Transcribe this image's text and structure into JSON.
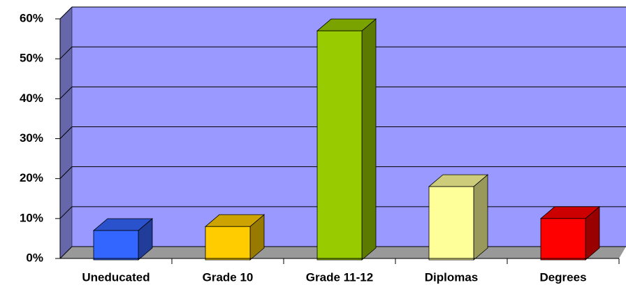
{
  "chart_data": {
    "type": "bar3d",
    "categories": [
      "Uneducated",
      "Grade 10",
      "Grade 11-12",
      "Diplomas",
      "Degrees"
    ],
    "values": [
      7,
      8,
      57,
      18,
      10
    ],
    "colors": [
      "#3366ff",
      "#ffcc00",
      "#99cc00",
      "#ffff99",
      "#ff0000"
    ],
    "ylim": [
      0,
      60
    ],
    "yticks": [
      {
        "value": 0,
        "label": "0%"
      },
      {
        "value": 10,
        "label": "10%"
      },
      {
        "value": 20,
        "label": "20%"
      },
      {
        "value": 30,
        "label": "30%"
      },
      {
        "value": 40,
        "label": "40%"
      },
      {
        "value": 50,
        "label": "50%"
      },
      {
        "value": 60,
        "label": "60%"
      }
    ],
    "grid": true
  }
}
